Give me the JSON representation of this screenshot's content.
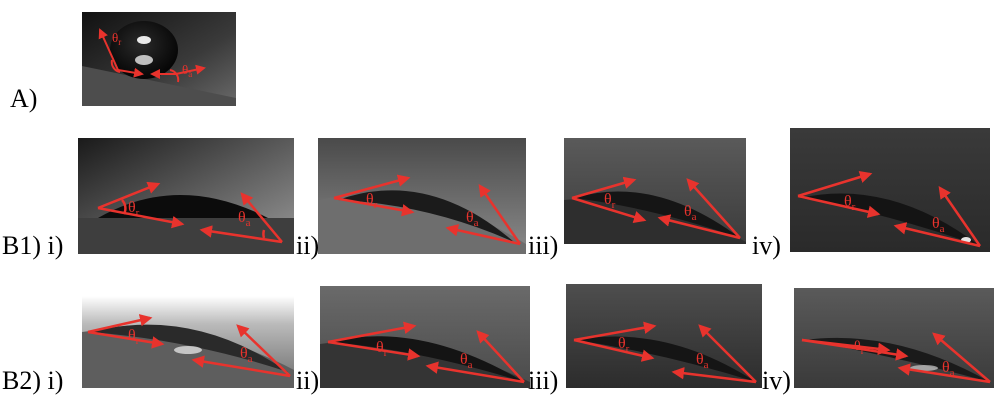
{
  "labels": {
    "a": "A)",
    "b1_row": "B1) i)",
    "b1_ii": "ii)",
    "b1_iii": "iii)",
    "b1_iv": "iv)",
    "b2_row": "B2) i)",
    "b2_ii": "ii)",
    "b2_iii": "iii)",
    "b2_iv": "iv)"
  },
  "angle_symbols": {
    "receding": "θ",
    "receding_sub": "r",
    "advancing": "θ",
    "advancing_sub": "a"
  },
  "colors": {
    "annotation": "#e8332d",
    "label": "#000000"
  }
}
